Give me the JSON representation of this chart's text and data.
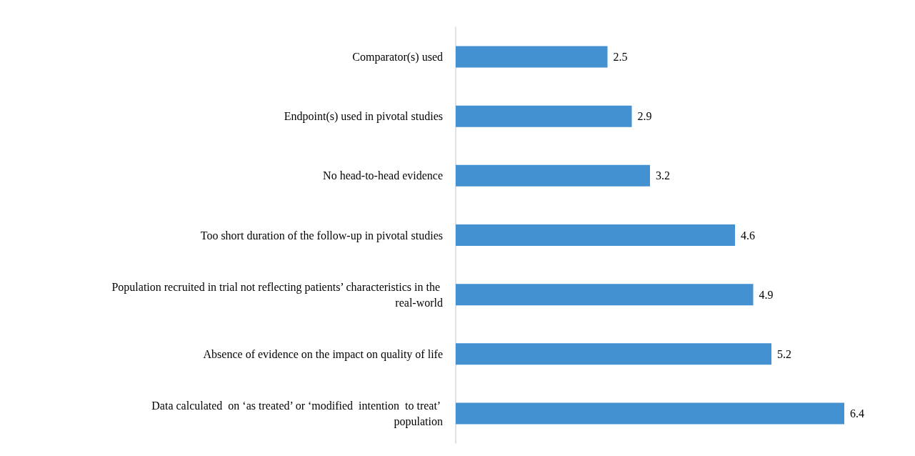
{
  "chart_data": {
    "type": "bar",
    "orientation": "horizontal",
    "categories": [
      "Comparator(s) used",
      "Endpoint(s) used in pivotal studies",
      "No head-to-head evidence",
      "Too short duration of the follow-up in pivotal studies",
      "Population recruited in trial not reflecting patients’ characteristics in the real-world",
      "Absence of evidence on the impact on quality of life",
      "Data calculated  on ‘as treated’ or ‘modified  intention  to treat’ population"
    ],
    "values": [
      2.5,
      2.9,
      3.2,
      4.6,
      4.9,
      5.2,
      6.4
    ],
    "color": "#4391d1",
    "data_labels": true
  }
}
